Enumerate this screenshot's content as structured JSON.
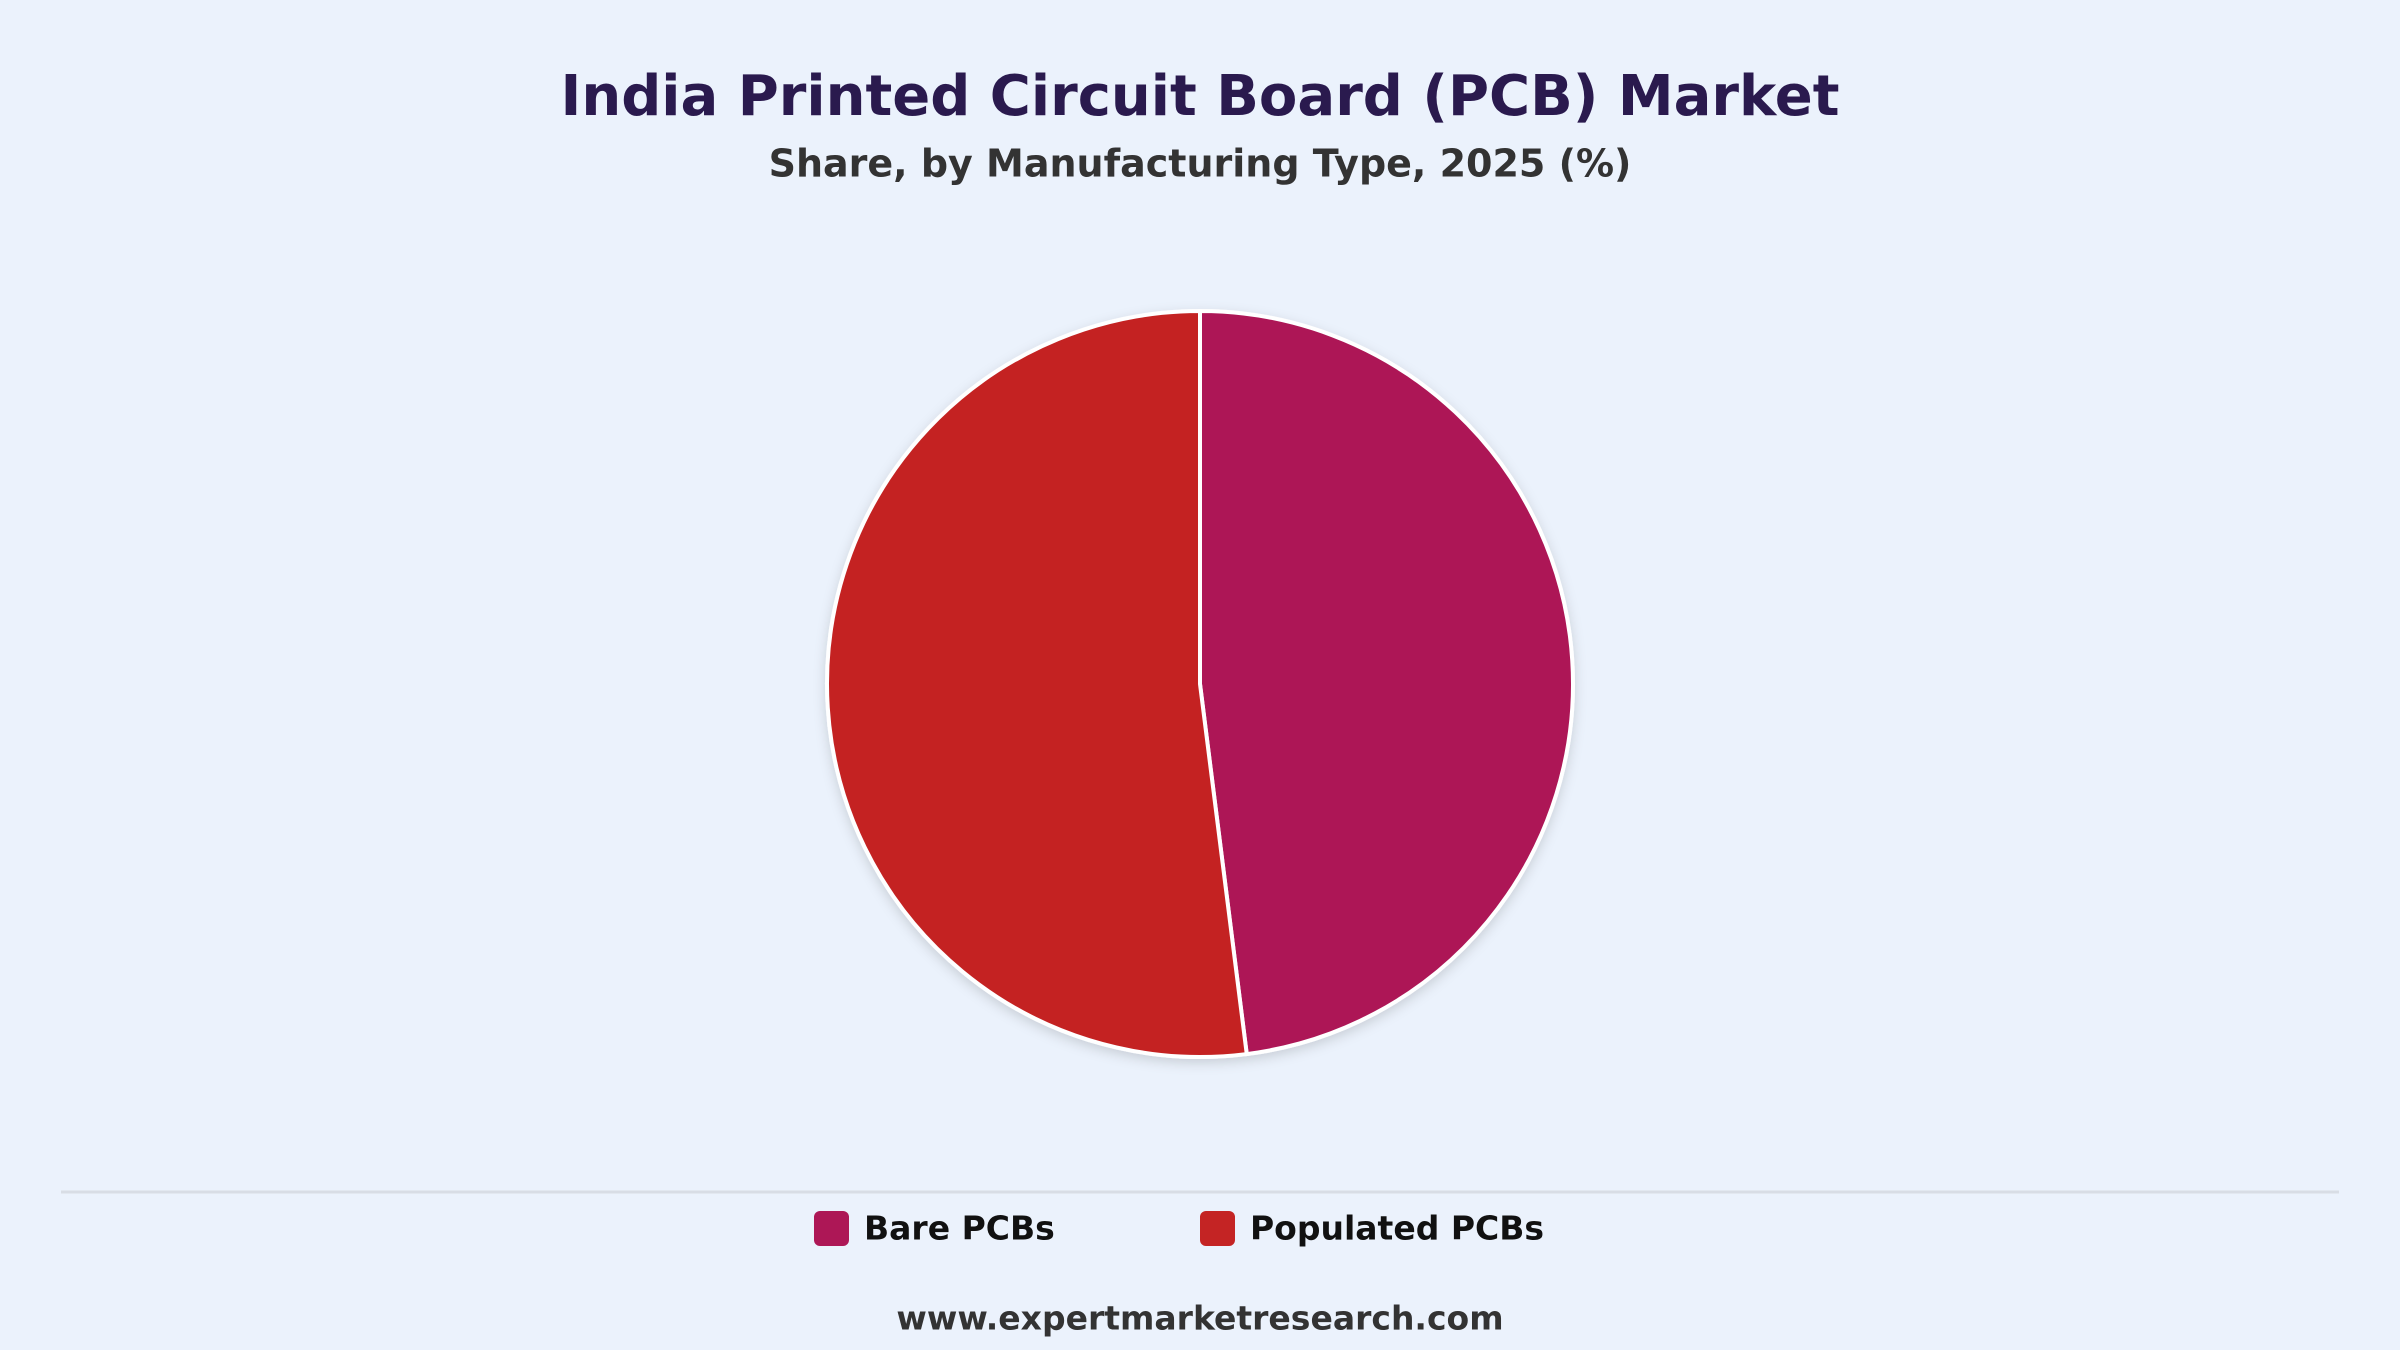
{
  "chart_data": {
    "type": "pie",
    "title": "India Printed Circuit Board (PCB) Market",
    "subtitle": "Share, by Manufacturing Type, 2025 (%)",
    "categories": [
      "Bare PCBs",
      "Populated PCBs"
    ],
    "values": [
      48,
      52
    ],
    "colors": [
      "#ad1756",
      "#c42424"
    ],
    "source": "www.expertmarketresearch.com"
  }
}
